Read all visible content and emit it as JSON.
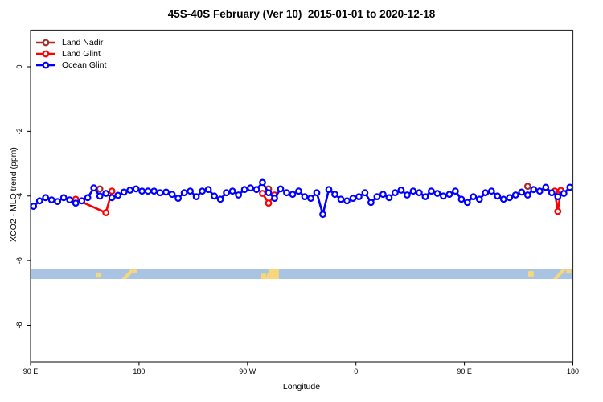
{
  "chart_data": {
    "type": "line",
    "title": "45S-40S February (Ver 10)  2015-01-01 to 2020-12-18",
    "xlabel": "Longitude",
    "ylabel": "XCO2 - MLO trend (ppm)",
    "xlim": [
      90,
      540
    ],
    "ylim": [
      -9.1,
      1.1
    ],
    "grid": false,
    "legend_position": "top-left",
    "x_ticks": [
      {
        "lon": 90,
        "label": "90 E"
      },
      {
        "lon": 180,
        "label": "180"
      },
      {
        "lon": 270,
        "label": "90 W"
      },
      {
        "lon": 360,
        "label": "0"
      },
      {
        "lon": 450,
        "label": "90 E"
      },
      {
        "lon": 540,
        "label": "180"
      }
    ],
    "y_ticks": [
      {
        "ppm": 0,
        "label": "0"
      },
      {
        "ppm": -2,
        "label": "-2"
      },
      {
        "ppm": -4,
        "label": "-4"
      },
      {
        "ppm": -6,
        "label": "-6"
      },
      {
        "ppm": -8,
        "label": "-8"
      }
    ],
    "series": [
      {
        "name": "Land Nadir",
        "color": "#a52a2a",
        "marker": "open-circle",
        "segments": [
          {
            "pts": [
              [
                147.5,
                -3.78
              ]
            ]
          },
          {
            "pts": [
              [
                287.5,
                -3.78
              ]
            ]
          },
          {
            "pts": [
              [
                502.5,
                -3.7
              ]
            ]
          }
        ]
      },
      {
        "name": "Land Glint",
        "color": "#ff0000",
        "marker": "open-circle",
        "segments": [
          {
            "pts": [
              [
                127.5,
                -4.1
              ],
              [
                152.5,
                -4.52
              ],
              [
                157.5,
                -3.85
              ]
            ]
          },
          {
            "pts": [
              [
                282.5,
                -3.92
              ],
              [
                287.5,
                -4.22
              ],
              [
                292.5,
                -3.97
              ]
            ]
          },
          {
            "pts": [
              [
                525.0,
                -3.85
              ],
              [
                527.5,
                -4.48
              ],
              [
                530.0,
                -3.83
              ]
            ]
          }
        ]
      },
      {
        "name": "Ocean Glint",
        "color": "#0000ff",
        "marker": "open-circle",
        "segments": [
          {
            "x0": 92.5,
            "dx": 5,
            "y": [
              -4.32,
              -4.15,
              -4.05,
              -4.12,
              -4.17,
              -4.05,
              -4.12,
              -4.22,
              -4.15,
              -4.05,
              -3.75,
              -4.0,
              -3.92,
              -4.05,
              -3.98,
              -3.88,
              -3.82,
              -3.78,
              -3.85,
              -3.85,
              -3.85,
              -3.9,
              -3.88,
              -3.95,
              -4.07,
              -3.9,
              -3.85,
              -4.02,
              -3.85,
              -3.8,
              -4.0,
              -4.1,
              -3.9,
              -3.85,
              -3.97,
              -3.8,
              -3.75,
              -3.8,
              -3.58,
              -3.9,
              -4.07,
              -3.78,
              -3.9,
              -3.95,
              -3.85,
              -4.02,
              -4.07,
              -3.9,
              -4.57,
              -3.8,
              -3.95,
              -4.1,
              -4.15,
              -4.07,
              -4.02,
              -3.9,
              -4.2,
              -4.02,
              -3.95,
              -4.05,
              -3.9,
              -3.82,
              -3.97,
              -3.85,
              -3.9,
              -4.02,
              -3.85,
              -3.92,
              -4.0,
              -3.95,
              -3.85,
              -4.1,
              -4.2,
              -4.02,
              -4.1,
              -3.9,
              -3.85,
              -4.0,
              -4.1,
              -4.05,
              -3.97,
              -3.88,
              -3.97,
              -3.8,
              -3.85,
              -3.73,
              -3.9,
              -4.02,
              -3.92,
              -3.73
            ]
          }
        ]
      }
    ],
    "map_strip": {
      "description": "land-ocean strip for 45S-40S",
      "ppm_top": -6.26,
      "ppm_bottom": -6.57,
      "ocean_color": "#a9c4e2",
      "land_color": "#f7d77a",
      "land_patches": [
        {
          "name": "tasmania",
          "poly": [
            [
              144.5,
              0.35
            ],
            [
              148.5,
              0.35
            ],
            [
              148.5,
              0.85
            ],
            [
              144.5,
              0.85
            ]
          ]
        },
        {
          "name": "new-zealand",
          "poly": [
            [
              165.5,
              1.0
            ],
            [
              169.5,
              1.0
            ],
            [
              177.0,
              0.05
            ],
            [
              173.0,
              0.05
            ]
          ]
        },
        {
          "name": "new-zealand-n",
          "poly": [
            [
              175.0,
              0.05
            ],
            [
              178.5,
              0.05
            ],
            [
              178.5,
              0.4
            ],
            [
              175.0,
              0.4
            ]
          ]
        },
        {
          "name": "patagonia-w",
          "poly": [
            [
              281.5,
              0.45
            ],
            [
              285.5,
              0.45
            ],
            [
              285.5,
              1.0
            ],
            [
              281.5,
              1.0
            ]
          ]
        },
        {
          "name": "patagonia",
          "poly": [
            [
              284.5,
              1.0
            ],
            [
              296.0,
              1.0
            ],
            [
              296.0,
              0.0
            ],
            [
              288.5,
              0.0
            ]
          ]
        },
        {
          "name": "tasmania-2",
          "poly": [
            [
              503.0,
              0.2
            ],
            [
              507.5,
              0.2
            ],
            [
              507.5,
              0.75
            ],
            [
              503.0,
              0.75
            ]
          ]
        },
        {
          "name": "new-zealand-2",
          "poly": [
            [
              523.5,
              1.0
            ],
            [
              527.0,
              1.0
            ],
            [
              534.5,
              0.05
            ],
            [
              530.5,
              0.05
            ]
          ]
        },
        {
          "name": "new-zealand-2n",
          "poly": [
            [
              534.5,
              0.05
            ],
            [
              538.5,
              0.05
            ],
            [
              538.5,
              0.45
            ],
            [
              534.5,
              0.45
            ]
          ]
        }
      ]
    }
  }
}
